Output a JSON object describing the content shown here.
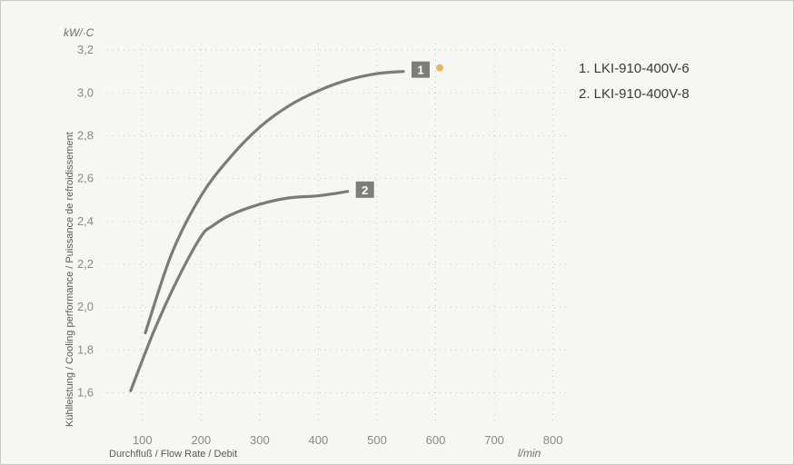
{
  "chart_data": {
    "type": "line",
    "title": "",
    "y_unit": "kW/·C",
    "x_unit": "l/min",
    "ylabel": "Kühlleistung / Cooling performance / Puissance de refroidissement",
    "xlabel": "Durchfluß / Flow Rate / Debit",
    "xlim": [
      40,
      830
    ],
    "ylim": [
      1.45,
      3.23
    ],
    "x_ticks": [
      100,
      200,
      300,
      400,
      500,
      600,
      700,
      800
    ],
    "x_tick_labels": [
      "100",
      "200",
      "300",
      "400",
      "500",
      "600",
      "700",
      "800"
    ],
    "y_ticks": [
      1.6,
      1.8,
      2.0,
      2.2,
      2.4,
      2.6,
      2.8,
      3.0,
      3.2
    ],
    "y_tick_labels": [
      "1,6",
      "1,8",
      "2,0",
      "2,2",
      "2,4",
      "2,6",
      "2,8",
      "3,0",
      "3,2"
    ],
    "grid": true,
    "legend_position": "right",
    "series": [
      {
        "name": "LKI-910-400V-6",
        "badge": "1",
        "color": "#7b7b79",
        "x": [
          105,
          150,
          200,
          250,
          300,
          350,
          400,
          450,
          500,
          545
        ],
        "y": [
          1.88,
          2.25,
          2.52,
          2.7,
          2.84,
          2.94,
          3.01,
          3.06,
          3.09,
          3.1
        ]
      },
      {
        "name": "LKI-910-400V-8",
        "badge": "2",
        "color": "#7b7b79",
        "x": [
          80,
          120,
          160,
          200,
          220,
          250,
          300,
          350,
          400,
          450
        ],
        "y": [
          1.61,
          1.89,
          2.13,
          2.33,
          2.38,
          2.43,
          2.48,
          2.51,
          2.52,
          2.54
        ]
      }
    ],
    "legend": [
      "1. LKI-910-400V-6",
      "2. LKI-910-400V-8"
    ],
    "badge_color": "#7d7d7b",
    "marker_color": "#f0b25a"
  }
}
